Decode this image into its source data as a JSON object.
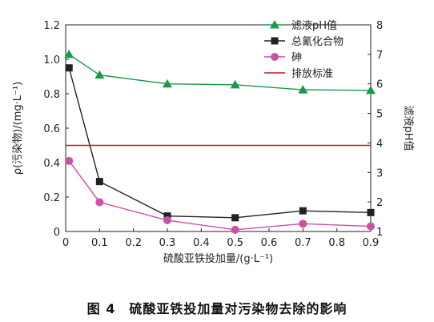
{
  "caption": "图 4　硫酸亚铁投加量对污染物去除的影响",
  "chart_data": {
    "type": "line",
    "xlabel": "硫酸亚铁投加量/(g·L⁻¹)",
    "ylabel_left": "ρ(污染物)/(mg·L⁻¹)",
    "ylabel_right": "滤液pH值",
    "xlim": [
      0,
      0.9
    ],
    "xticks": [
      "0",
      "0.1",
      "0.2",
      "0.3",
      "0.4",
      "0.5",
      "0.6",
      "0.7",
      "0.8",
      "0.9"
    ],
    "xtick_values": [
      0,
      0.1,
      0.2,
      0.3,
      0.4,
      0.5,
      0.6,
      0.7,
      0.8,
      0.9
    ],
    "ylim_left": [
      0,
      1.2
    ],
    "yticks_left": [
      "0",
      "0.2",
      "0.4",
      "0.6",
      "0.8",
      "1.0",
      "1.2"
    ],
    "ytick_values_left": [
      0,
      0.2,
      0.4,
      0.6,
      0.8,
      1.0,
      1.2
    ],
    "ylim_right": [
      1,
      8
    ],
    "yticks_right": [
      "1",
      "2",
      "3",
      "4",
      "5",
      "6",
      "7",
      "8"
    ],
    "ytick_values_right": [
      1,
      2,
      3,
      4,
      5,
      6,
      7,
      8
    ],
    "legend_position": "top-right",
    "series": [
      {
        "name": "滤液pH值",
        "axis": "right",
        "marker": "triangle",
        "color": "#1a9a4a",
        "x": [
          0.01,
          0.1,
          0.3,
          0.5,
          0.7,
          0.9
        ],
        "y": [
          7.0,
          6.3,
          6.0,
          5.97,
          5.8,
          5.78
        ]
      },
      {
        "name": "总氰化合物",
        "axis": "left",
        "marker": "square",
        "color": "#222222",
        "x": [
          0.01,
          0.1,
          0.3,
          0.5,
          0.7,
          0.9
        ],
        "y": [
          0.95,
          0.29,
          0.09,
          0.08,
          0.12,
          0.11
        ]
      },
      {
        "name": "砷",
        "axis": "left",
        "marker": "circle",
        "color": "#cc4fa8",
        "x": [
          0.01,
          0.1,
          0.3,
          0.5,
          0.7,
          0.9
        ],
        "y": [
          0.41,
          0.17,
          0.065,
          0.01,
          0.045,
          0.03
        ]
      },
      {
        "name": "排放标准",
        "axis": "left",
        "marker": "none",
        "color": "#c8102e",
        "x": [
          0,
          0.9
        ],
        "y": [
          0.5,
          0.5
        ]
      }
    ]
  }
}
